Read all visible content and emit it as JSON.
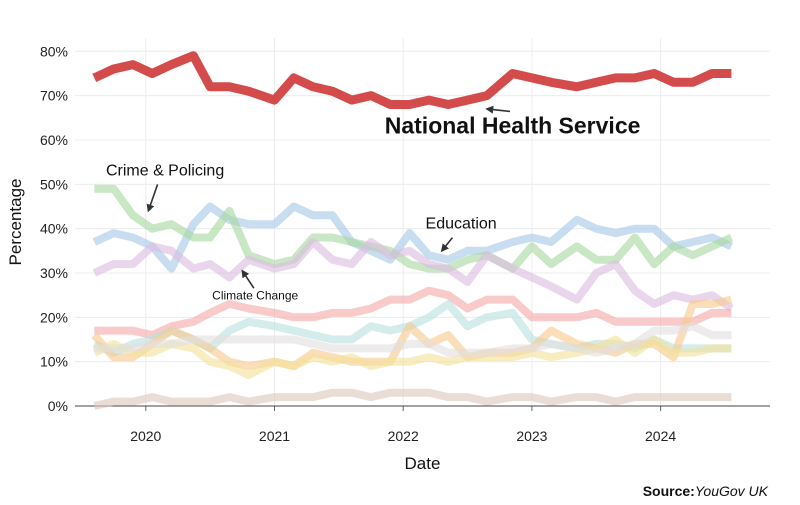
{
  "chart_data": {
    "type": "line",
    "xlabel": "Date",
    "ylabel": "Percentage",
    "xlim": [
      2019.45,
      2024.85
    ],
    "ylim": [
      0,
      83
    ],
    "x_ticks": [
      2020,
      2021,
      2022,
      2023,
      2024
    ],
    "x_tick_labels": [
      "2020",
      "2021",
      "2022",
      "2023",
      "2024"
    ],
    "y_ticks": [
      0,
      10,
      20,
      30,
      40,
      50,
      60,
      70,
      80
    ],
    "y_tick_labels": [
      "0%",
      "10%",
      "20%",
      "30%",
      "40%",
      "50%",
      "60%",
      "70%",
      "80%"
    ],
    "grid": true,
    "x": [
      2019.6,
      2019.75,
      2019.9,
      2020.05,
      2020.2,
      2020.37,
      2020.5,
      2020.65,
      2020.8,
      2021.0,
      2021.15,
      2021.3,
      2021.45,
      2021.6,
      2021.75,
      2021.9,
      2022.05,
      2022.2,
      2022.35,
      2022.5,
      2022.65,
      2022.85,
      2023.0,
      2023.15,
      2023.35,
      2023.5,
      2023.65,
      2023.8,
      2023.95,
      2024.1,
      2024.25,
      2024.4,
      2024.55
    ],
    "series": [
      {
        "name": "National Health Service",
        "color": "#d34b4b",
        "values": [
          74,
          76,
          77,
          75,
          77,
          79,
          72,
          72,
          71,
          69,
          74,
          72,
          71,
          69,
          70,
          68,
          68,
          69,
          68,
          69,
          70,
          75,
          74,
          73,
          72,
          73,
          74,
          74,
          75,
          73,
          73,
          75,
          75
        ]
      },
      {
        "name": "Crime & Policing",
        "color": "#a7c8e6",
        "values": [
          37,
          39,
          38,
          36,
          31,
          41,
          45,
          42,
          41,
          41,
          45,
          43,
          43,
          37,
          35,
          33,
          39,
          34,
          33,
          35,
          35,
          37,
          38,
          37,
          42,
          40,
          39,
          40,
          40,
          36,
          37,
          38,
          36
        ]
      },
      {
        "name": "Education",
        "color": "#a8d8a0",
        "values": [
          49,
          49,
          43,
          40,
          41,
          38,
          38,
          44,
          34,
          32,
          33,
          38,
          38,
          37,
          36,
          35,
          32,
          31,
          31,
          33,
          34,
          31,
          36,
          32,
          36,
          33,
          33,
          38,
          32,
          36,
          34,
          36,
          38
        ]
      },
      {
        "name": "",
        "color": "#dcbde0",
        "values": [
          30,
          32,
          32,
          36,
          35,
          31,
          32,
          29,
          33,
          31,
          32,
          37,
          33,
          32,
          37,
          34,
          35,
          32,
          31,
          28,
          34,
          31,
          29,
          27,
          24,
          30,
          32,
          26,
          23,
          25,
          24,
          25,
          22
        ]
      },
      {
        "name": "Climate Change",
        "color": "#f3a9a9",
        "values": [
          17,
          17,
          17,
          16,
          18,
          19,
          21,
          23,
          22,
          21,
          20,
          20,
          21,
          21,
          22,
          24,
          24,
          26,
          25,
          22,
          24,
          24,
          20,
          20,
          20,
          21,
          19,
          19,
          19,
          19,
          19,
          21,
          21
        ]
      },
      {
        "name": "",
        "color": "#b9e0de",
        "values": [
          14,
          12,
          14,
          15,
          17,
          15,
          13,
          17,
          19,
          18,
          17,
          16,
          15,
          15,
          18,
          17,
          18,
          20,
          23,
          18,
          20,
          21,
          15,
          14,
          13,
          14,
          14,
          13,
          15,
          13,
          13,
          13,
          13
        ]
      },
      {
        "name": "",
        "color": "#f7c98f",
        "values": [
          16,
          11,
          11,
          14,
          17,
          15,
          13,
          10,
          9,
          10,
          9,
          12,
          11,
          10,
          10,
          10,
          18,
          14,
          16,
          11,
          12,
          12,
          13,
          17,
          14,
          13,
          12,
          14,
          14,
          11,
          23,
          23,
          24
        ]
      },
      {
        "name": "",
        "color": "#f3e29a",
        "values": [
          12,
          14,
          12,
          12,
          14,
          13,
          10,
          9,
          7,
          10,
          9,
          11,
          10,
          11,
          9,
          10,
          10,
          11,
          10,
          11,
          11,
          11,
          12,
          11,
          12,
          13,
          15,
          12,
          15,
          12,
          12,
          13,
          13
        ]
      },
      {
        "name": "",
        "color": "#e2dede",
        "values": [
          13,
          13,
          13,
          14,
          14,
          15,
          15,
          15,
          15,
          15,
          15,
          14,
          13,
          13,
          13,
          13,
          14,
          14,
          12,
          12,
          12,
          13,
          13,
          14,
          13,
          12,
          13,
          14,
          17,
          17,
          18,
          16,
          16
        ]
      },
      {
        "name": "",
        "color": "#ddc8bd",
        "values": [
          0,
          1,
          1,
          2,
          1,
          1,
          1,
          2,
          1,
          2,
          2,
          2,
          3,
          3,
          2,
          3,
          3,
          3,
          2,
          2,
          1,
          2,
          2,
          1,
          2,
          2,
          1,
          2,
          2,
          2,
          2,
          2,
          2
        ]
      }
    ],
    "annotations": [
      {
        "text": "National Health Service",
        "x": 2022.85,
        "y": 61.5,
        "size": "large",
        "arrow_to": [
          2022.65,
          67
        ]
      },
      {
        "text": "Crime & Policing",
        "x": 2020.15,
        "y": 52,
        "size": "medium",
        "arrow_to": [
          2020.02,
          44
        ]
      },
      {
        "text": "Education",
        "x": 2022.45,
        "y": 40,
        "size": "medium",
        "arrow_to": [
          2022.3,
          35
        ]
      },
      {
        "text": "Climate Change",
        "x": 2020.85,
        "y": 24,
        "size": "small",
        "arrow_to": [
          2020.75,
          30.5
        ]
      }
    ]
  },
  "source": {
    "label": "Source:",
    "name": "YouGov UK"
  }
}
